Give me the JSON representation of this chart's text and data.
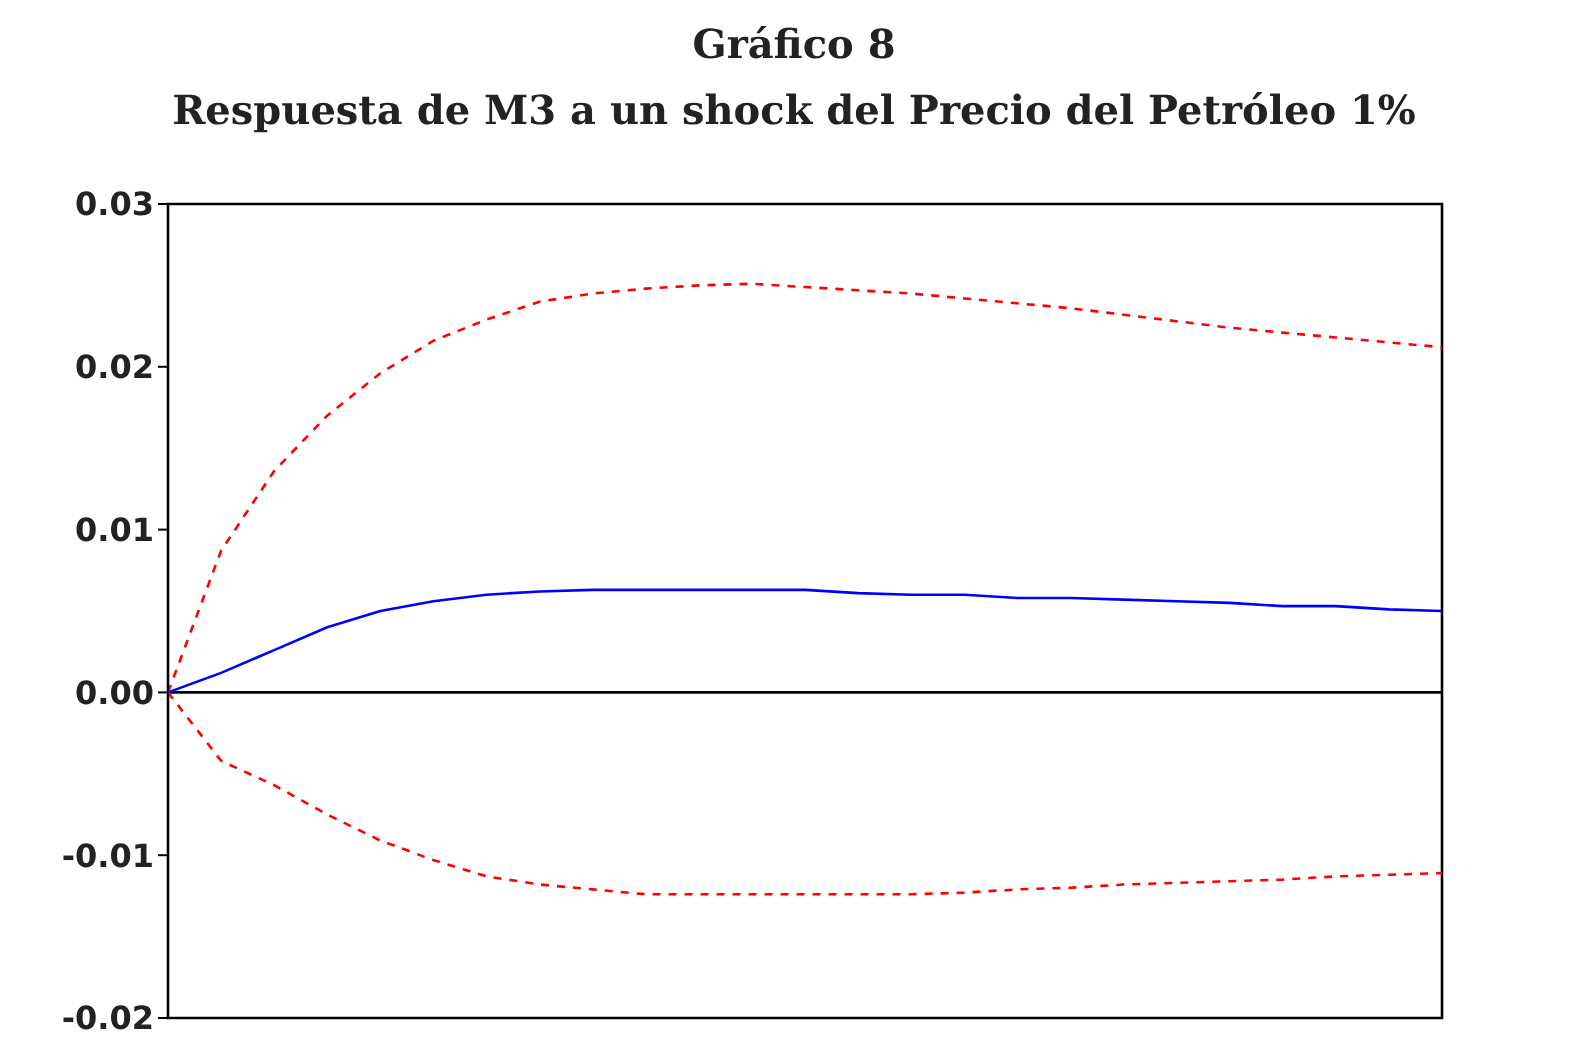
{
  "chart_data": {
    "type": "line",
    "title": "Gráfico 8",
    "subtitle": "Respuesta de M3 a un shock del Precio del Petróleo 1%",
    "categories": [
      null,
      null,
      null,
      null,
      null,
      null,
      null,
      null,
      null,
      null,
      null,
      null,
      null,
      null,
      null,
      null,
      null,
      null,
      null,
      null,
      null,
      null,
      null,
      null,
      null
    ],
    "series": [
      {
        "color": "#0000ff",
        "line_style": "solid",
        "values": [
          0,
          0.0012,
          0.0026,
          0.004,
          0.005,
          0.0056,
          0.006,
          0.0062,
          0.0063,
          0.0063,
          0.0063,
          0.0063,
          0.0063,
          0.0061,
          0.006,
          0.006,
          0.0058,
          0.0058,
          0.0057,
          0.0056,
          0.0055,
          0.0053,
          0.0053,
          0.0051,
          0.005
        ]
      },
      {
        "color": "#ff0000",
        "line_style": "dashed",
        "values": [
          0,
          0.0087,
          0.0136,
          0.017,
          0.0196,
          0.0216,
          0.0229,
          0.024,
          0.0245,
          0.0248,
          0.025,
          0.0251,
          0.0249,
          0.0247,
          0.0245,
          0.0242,
          0.0239,
          0.0236,
          0.0232,
          0.0228,
          0.0224,
          0.0221,
          0.0218,
          0.0215,
          0.0212
        ]
      },
      {
        "color": "#ff0000",
        "line_style": "dashed",
        "values": [
          0,
          -0.0042,
          -0.0057,
          -0.0075,
          -0.0091,
          -0.0103,
          -0.0113,
          -0.0118,
          -0.0121,
          -0.0124,
          -0.0124,
          -0.0124,
          -0.0124,
          -0.0124,
          -0.0124,
          -0.0123,
          -0.0121,
          -0.012,
          -0.0118,
          -0.0117,
          -0.0116,
          -0.0115,
          -0.0113,
          -0.0112,
          -0.0111
        ]
      }
    ],
    "ylim": [
      -0.02,
      0.03
    ],
    "yticks": [
      {
        "value": 0.03,
        "label": "0.03"
      },
      {
        "value": 0.02,
        "label": "0.02"
      },
      {
        "value": 0.01,
        "label": "0.01"
      },
      {
        "value": 0,
        "label": "0.00"
      },
      {
        "value": -0.01,
        "label": "-0.01"
      },
      {
        "value": -0.02,
        "label": "-0.02"
      }
    ],
    "ref_lines": [
      {
        "axis": "y",
        "value": 0,
        "color": "#000000"
      }
    ],
    "grid": false,
    "legend": false,
    "marker": "none",
    "tick_labels": "y"
  }
}
